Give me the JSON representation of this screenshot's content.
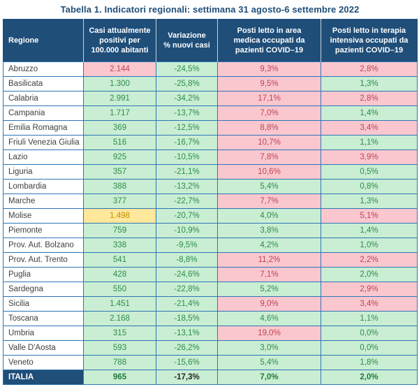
{
  "title": "Tabella 1. Indicatori regionali: settimana 31 agosto-6 settembre 2022",
  "colors": {
    "header_bg": "#1F4E79",
    "title_text": "#1F4E79",
    "grid_border": "#2E75B6",
    "good_bg": "#C9EED3",
    "good_text": "#2E8B4A",
    "bad_bg": "#FAC7CF",
    "bad_text": "#BC4450",
    "neutral_bg": "#FFE79B",
    "neutral_text": "#BF8F00"
  },
  "table": {
    "headers": [
      "Regione",
      "Casi attualmente\npositivi per\n100.000 abitanti",
      "Variazione\n% nuovi casi",
      "Posti letto in area\nmedica occupati da\npazienti COVID–19",
      "Posti letto in terapia\nintensiva occupati da\npazienti COVID–19"
    ],
    "rows": [
      {
        "region": "Abruzzo",
        "cells": [
          {
            "v": "2.144",
            "s": "bad"
          },
          {
            "v": "-24,5%",
            "s": "good"
          },
          {
            "v": "9,3%",
            "s": "bad"
          },
          {
            "v": "2,8%",
            "s": "bad"
          }
        ]
      },
      {
        "region": "Basilicata",
        "cells": [
          {
            "v": "1.300",
            "s": "good"
          },
          {
            "v": "-25,8%",
            "s": "good"
          },
          {
            "v": "9,5%",
            "s": "bad"
          },
          {
            "v": "1,3%",
            "s": "good"
          }
        ]
      },
      {
        "region": "Calabria",
        "cells": [
          {
            "v": "2.991",
            "s": "good"
          },
          {
            "v": "-34,2%",
            "s": "good"
          },
          {
            "v": "17,1%",
            "s": "bad"
          },
          {
            "v": "2,8%",
            "s": "bad"
          }
        ]
      },
      {
        "region": "Campania",
        "cells": [
          {
            "v": "1.717",
            "s": "good"
          },
          {
            "v": "-13,7%",
            "s": "good"
          },
          {
            "v": "7,0%",
            "s": "bad"
          },
          {
            "v": "1,4%",
            "s": "good"
          }
        ]
      },
      {
        "region": "Emilia Romagna",
        "cells": [
          {
            "v": "369",
            "s": "good"
          },
          {
            "v": "-12,5%",
            "s": "good"
          },
          {
            "v": "8,8%",
            "s": "bad"
          },
          {
            "v": "3,4%",
            "s": "bad"
          }
        ]
      },
      {
        "region": "Friuli Venezia Giulia",
        "cells": [
          {
            "v": "516",
            "s": "good"
          },
          {
            "v": "-16,7%",
            "s": "good"
          },
          {
            "v": "10,7%",
            "s": "bad"
          },
          {
            "v": "1,1%",
            "s": "good"
          }
        ]
      },
      {
        "region": "Lazio",
        "cells": [
          {
            "v": "925",
            "s": "good"
          },
          {
            "v": "-10,5%",
            "s": "good"
          },
          {
            "v": "7,8%",
            "s": "bad"
          },
          {
            "v": "3,9%",
            "s": "bad"
          }
        ]
      },
      {
        "region": "Liguria",
        "cells": [
          {
            "v": "357",
            "s": "good"
          },
          {
            "v": "-21,1%",
            "s": "good"
          },
          {
            "v": "10,6%",
            "s": "bad"
          },
          {
            "v": "0,5%",
            "s": "good"
          }
        ]
      },
      {
        "region": "Lombardia",
        "cells": [
          {
            "v": "388",
            "s": "good"
          },
          {
            "v": "-13,2%",
            "s": "good"
          },
          {
            "v": "5,4%",
            "s": "good"
          },
          {
            "v": "0,8%",
            "s": "good"
          }
        ]
      },
      {
        "region": "Marche",
        "cells": [
          {
            "v": "377",
            "s": "good"
          },
          {
            "v": "-22,7%",
            "s": "good"
          },
          {
            "v": "7,7%",
            "s": "bad"
          },
          {
            "v": "1,3%",
            "s": "good"
          }
        ]
      },
      {
        "region": "Molise",
        "cells": [
          {
            "v": "1.498",
            "s": "warn"
          },
          {
            "v": "-20,7%",
            "s": "good"
          },
          {
            "v": "4,0%",
            "s": "good"
          },
          {
            "v": "5,1%",
            "s": "bad"
          }
        ]
      },
      {
        "region": "Piemonte",
        "cells": [
          {
            "v": "759",
            "s": "good"
          },
          {
            "v": "-10,9%",
            "s": "good"
          },
          {
            "v": "3,8%",
            "s": "good"
          },
          {
            "v": "1,4%",
            "s": "good"
          }
        ]
      },
      {
        "region": "Prov. Aut. Bolzano",
        "cells": [
          {
            "v": "338",
            "s": "good"
          },
          {
            "v": "-9,5%",
            "s": "good"
          },
          {
            "v": "4,2%",
            "s": "good"
          },
          {
            "v": "1,0%",
            "s": "good"
          }
        ]
      },
      {
        "region": "Prov. Aut. Trento",
        "cells": [
          {
            "v": "541",
            "s": "good"
          },
          {
            "v": "-8,8%",
            "s": "good"
          },
          {
            "v": "11,2%",
            "s": "bad"
          },
          {
            "v": "2,2%",
            "s": "bad"
          }
        ]
      },
      {
        "region": "Puglia",
        "cells": [
          {
            "v": "428",
            "s": "good"
          },
          {
            "v": "-24,6%",
            "s": "good"
          },
          {
            "v": "7,1%",
            "s": "bad"
          },
          {
            "v": "2,0%",
            "s": "good"
          }
        ]
      },
      {
        "region": "Sardegna",
        "cells": [
          {
            "v": "550",
            "s": "good"
          },
          {
            "v": "-22,8%",
            "s": "good"
          },
          {
            "v": "5,2%",
            "s": "good"
          },
          {
            "v": "2,9%",
            "s": "bad"
          }
        ]
      },
      {
        "region": "Sicilia",
        "cells": [
          {
            "v": "1.451",
            "s": "good"
          },
          {
            "v": "-21,4%",
            "s": "good"
          },
          {
            "v": "9,0%",
            "s": "bad"
          },
          {
            "v": "3,4%",
            "s": "bad"
          }
        ]
      },
      {
        "region": "Toscana",
        "cells": [
          {
            "v": "2.168",
            "s": "good"
          },
          {
            "v": "-18,5%",
            "s": "good"
          },
          {
            "v": "4,6%",
            "s": "good"
          },
          {
            "v": "1,1%",
            "s": "good"
          }
        ]
      },
      {
        "region": "Umbria",
        "cells": [
          {
            "v": "315",
            "s": "good"
          },
          {
            "v": "-13,1%",
            "s": "good"
          },
          {
            "v": "19,0%",
            "s": "bad"
          },
          {
            "v": "0,0%",
            "s": "good"
          }
        ]
      },
      {
        "region": "Valle D'Aosta",
        "cells": [
          {
            "v": "593",
            "s": "good"
          },
          {
            "v": "-26,2%",
            "s": "good"
          },
          {
            "v": "3,0%",
            "s": "good"
          },
          {
            "v": "0,0%",
            "s": "good"
          }
        ]
      },
      {
        "region": "Veneto",
        "cells": [
          {
            "v": "788",
            "s": "good"
          },
          {
            "v": "-15,6%",
            "s": "good"
          },
          {
            "v": "5,4%",
            "s": "good"
          },
          {
            "v": "1,8%",
            "s": "good"
          }
        ]
      },
      {
        "region": "ITALIA",
        "total": true,
        "cells": [
          {
            "v": "965",
            "s": "good"
          },
          {
            "v": "-17,3%",
            "s": "gooddark"
          },
          {
            "v": "7,0%",
            "s": "good"
          },
          {
            "v": "2,0%",
            "s": "good"
          }
        ]
      }
    ]
  }
}
